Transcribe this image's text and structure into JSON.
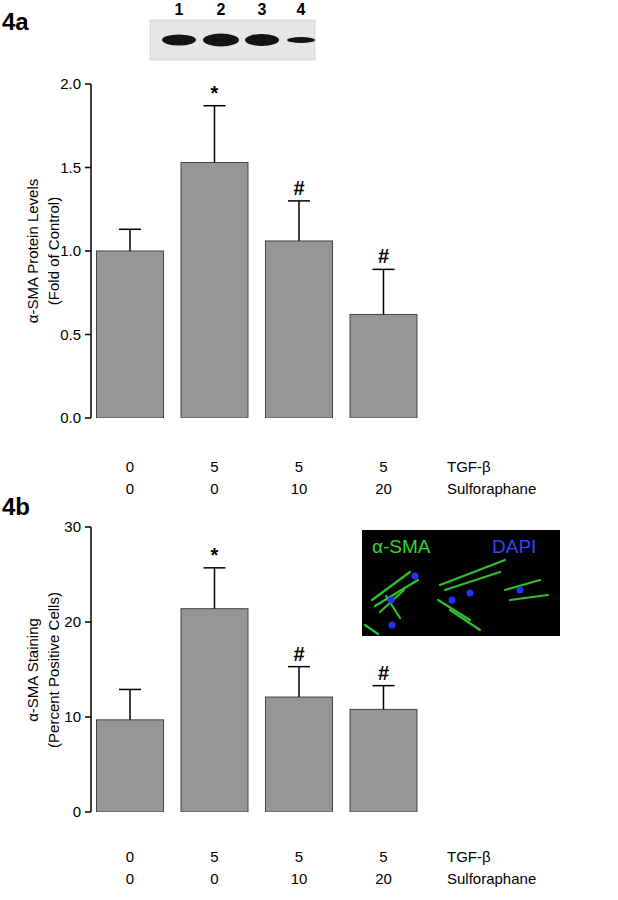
{
  "chart_data": [
    {
      "type": "bar",
      "title": "4a",
      "ylabel": [
        "α-SMA Protein Levels",
        "(Fold of Control)"
      ],
      "categories": [
        null,
        null,
        null,
        null
      ],
      "category_rows": [
        {
          "name": "TGF-β",
          "labels": [
            0,
            5,
            5,
            5
          ]
        },
        {
          "name": "Sulforaphane",
          "labels": [
            0,
            0,
            10,
            20
          ]
        }
      ],
      "values": [
        1.0,
        1.53,
        1.06,
        0.62
      ],
      "errors": [
        0.13,
        0.34,
        0.24,
        0.27
      ],
      "significance": [
        null,
        "*",
        "#",
        "#"
      ],
      "color": "#969696",
      "ylim": [
        0,
        2.0
      ],
      "yticks": [
        {
          "value": 0,
          "label": "0.0"
        },
        {
          "value": 0.5,
          "label": "0.5"
        },
        {
          "value": 1.0,
          "label": "1.0"
        },
        {
          "value": 1.5,
          "label": "1.5"
        },
        {
          "value": 2.0,
          "label": "2.0"
        }
      ],
      "grid": false,
      "blot_lanes": [
        1,
        2,
        3,
        4
      ]
    },
    {
      "type": "bar",
      "title": "4b",
      "ylabel": [
        "α-SMA Staining",
        "(Percent Positive Cells)"
      ],
      "categories": [
        null,
        null,
        null,
        null
      ],
      "category_rows": [
        {
          "name": "TGF-β",
          "labels": [
            0,
            5,
            5,
            5
          ]
        },
        {
          "name": "Sulforaphane",
          "labels": [
            0,
            0,
            10,
            20
          ]
        }
      ],
      "values": [
        9.7,
        21.4,
        12.1,
        10.8
      ],
      "errors": [
        3.2,
        4.3,
        3.2,
        2.5
      ],
      "significance": [
        null,
        "*",
        "#",
        "#"
      ],
      "color": "#969696",
      "ylim": [
        0,
        30
      ],
      "yticks": [
        0,
        10,
        20,
        30
      ],
      "grid": false,
      "inset_labels": [
        {
          "text": "α-SMA",
          "color": "#33d633"
        },
        {
          "text": "DAPI",
          "color": "#3344ff"
        }
      ]
    }
  ]
}
